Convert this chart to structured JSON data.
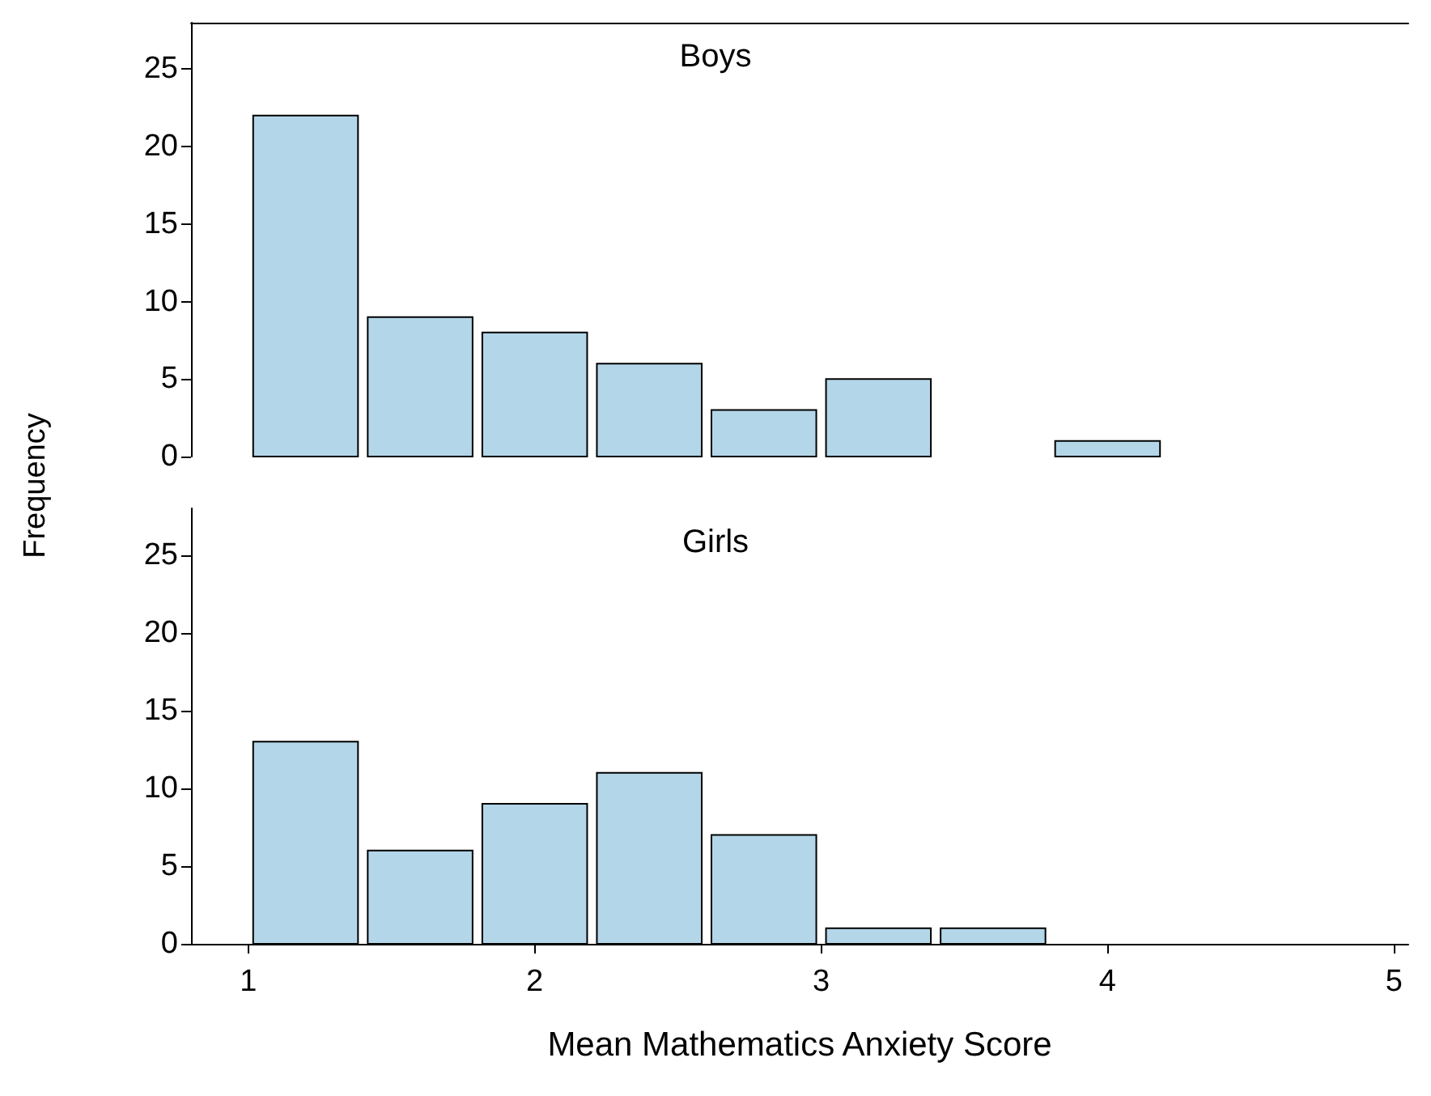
{
  "chart_data": [
    {
      "type": "histogram",
      "title": "Boys",
      "ylabel": "Frequency",
      "bins": [
        1,
        1.4,
        1.8,
        2.2,
        2.6,
        3.0,
        3.4,
        3.8,
        4.2
      ],
      "values": [
        22,
        9,
        8,
        6,
        3,
        5,
        0,
        1
      ],
      "color": "#b3d6e8",
      "xlim": [
        0.8,
        5.05
      ],
      "ylim": [
        0,
        28
      ],
      "yticks": [
        0,
        5,
        10,
        15,
        20,
        25
      ],
      "tick_labels": "y",
      "grid": false
    },
    {
      "type": "histogram",
      "title": "Girls",
      "xlabel": "Mean Mathematics Anxiety Score",
      "bins": [
        1,
        1.4,
        1.8,
        2.2,
        2.6,
        3.0,
        3.4,
        3.8,
        4.2
      ],
      "values": [
        13,
        6,
        9,
        11,
        7,
        1,
        1,
        0
      ],
      "color": "#b3d6e8",
      "xlim": [
        0.8,
        5.05
      ],
      "xticks": [
        1,
        2,
        3,
        4,
        5
      ],
      "ylim": [
        0,
        28
      ],
      "yticks": [
        0,
        5,
        10,
        15,
        20,
        25
      ],
      "grid": false
    }
  ]
}
